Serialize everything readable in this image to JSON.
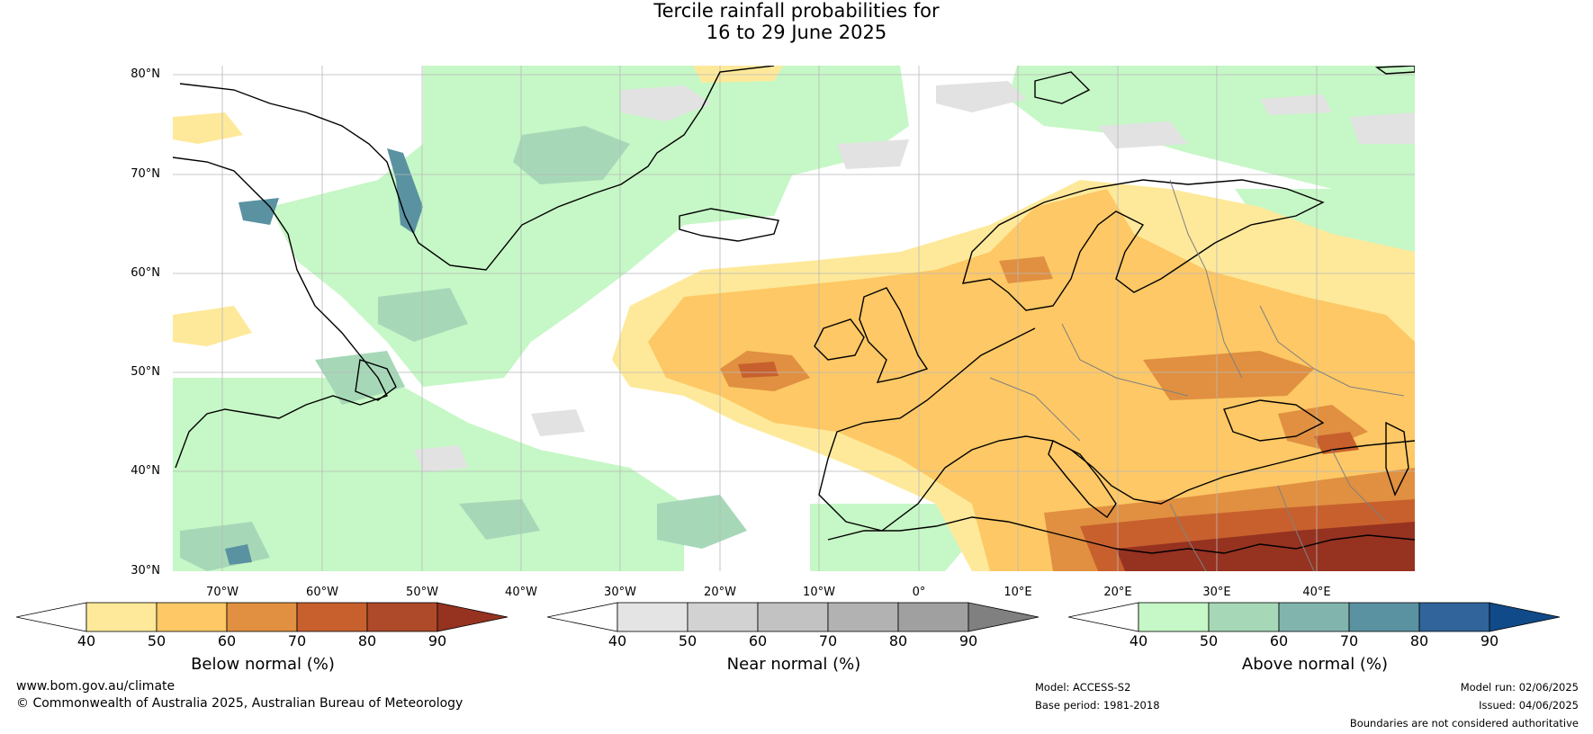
{
  "title": {
    "line1": "Tercile rainfall probabilities for",
    "line2": "16 to 29 June 2025"
  },
  "map": {
    "lat_labels": [
      "80°N",
      "70°N",
      "60°N",
      "50°N",
      "40°N",
      "30°N"
    ],
    "lon_labels": [
      "70°W",
      "60°W",
      "50°W",
      "40°W",
      "30°W",
      "20°W",
      "10°W",
      "0°",
      "10°E",
      "20°E",
      "30°E",
      "40°E"
    ],
    "colors": {
      "land_outline": "#000000",
      "borders": "#808080",
      "grid": "#b0b0b0"
    }
  },
  "colorbars": [
    {
      "title": "Below normal (%)",
      "ticks": [
        "40",
        "50",
        "60",
        "70",
        "80",
        "90"
      ],
      "colors": [
        "#ffffff",
        "#fee99a",
        "#fdc865",
        "#e09040",
        "#c8602e",
        "#ae4a2a",
        "#963220"
      ]
    },
    {
      "title": "Near normal (%)",
      "ticks": [
        "40",
        "50",
        "60",
        "70",
        "80",
        "90"
      ],
      "colors": [
        "#ffffff",
        "#e4e4e4",
        "#d2d2d2",
        "#c2c2c2",
        "#b2b2b2",
        "#a0a0a0",
        "#808080"
      ]
    },
    {
      "title": "Above normal (%)",
      "ticks": [
        "40",
        "50",
        "60",
        "70",
        "80",
        "90"
      ],
      "colors": [
        "#ffffff",
        "#c6f7c6",
        "#a6d8b8",
        "#82b4ae",
        "#5a92a2",
        "#30649a",
        "#114a88"
      ]
    }
  ],
  "footer": {
    "website": "www.bom.gov.au/climate",
    "copyright": "© Commonwealth of Australia 2025, Australian Bureau of Meteorology",
    "model": "Model: ACCESS-S2",
    "base_period": "Base period: 1981-2018",
    "model_run": "Model run: 02/06/2025",
    "issued": "Issued: 04/06/2025",
    "disclaimer": "Boundaries are not considered authoritative"
  }
}
